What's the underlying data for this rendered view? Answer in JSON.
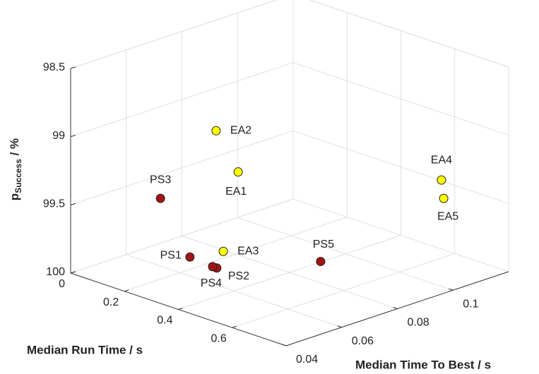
{
  "chart_data": {
    "type": "scatter3d",
    "xlabel": "Median Run Time / s",
    "ylabel": "Median Time To Best / s",
    "zlabel": {
      "main": "p",
      "sub": "Success",
      "suffix": " / %"
    },
    "xlim": [
      0,
      0.8
    ],
    "xticks": [
      0,
      0.2,
      0.4,
      0.6
    ],
    "ylim": [
      0.04,
      0.12
    ],
    "yticks": [
      0.04,
      0.06,
      0.08,
      0.1
    ],
    "zlim": [
      98.5,
      100
    ],
    "zticks": [
      98.5,
      99,
      99.5,
      100
    ],
    "zreverse": true,
    "grid": true,
    "series": [
      {
        "color": "#ffff00",
        "labels": [
          "EA1",
          "EA2",
          "EA3",
          "EA4",
          "EA5"
        ],
        "x": [
          0.24,
          0.16,
          0.32,
          0.72,
          0.72
        ],
        "y": [
          0.077,
          0.0768,
          0.0639,
          0.1036,
          0.1044
        ],
        "values": [
          99.35,
          99.1,
          99.79,
          99.27,
          99.41
        ]
      },
      {
        "color": "#a01414",
        "labels": [
          "PS1",
          "PS2",
          "PS3",
          "PS4",
          "PS5"
        ],
        "x": [
          0.32,
          0.4,
          0.16,
          0.4,
          0.48
        ],
        "y": [
          0.0519,
          0.0538,
          0.0568,
          0.0523,
          0.0834
        ],
        "values": [
          99.75,
          99.79,
          99.46,
          99.77,
          99.89
        ]
      }
    ]
  }
}
